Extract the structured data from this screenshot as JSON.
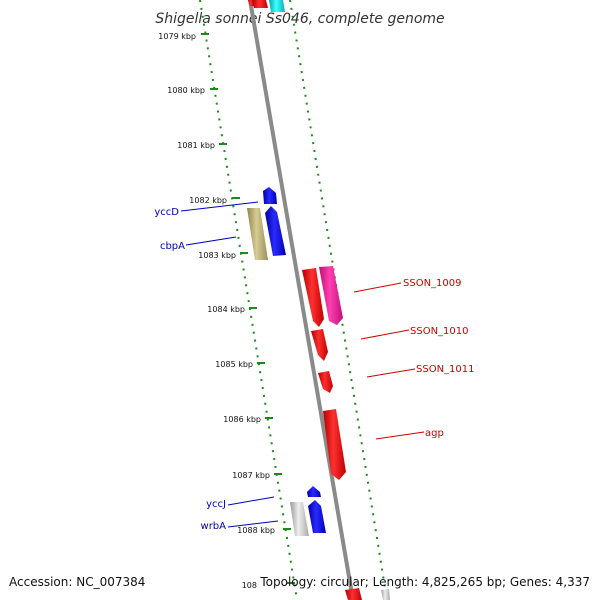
{
  "title": "Shigella sonnei Ss046, complete genome",
  "accession_label": "Accession: NC_007384",
  "summary_label": "Topology: circular; Length: 4,825,265 bp; Genes: 4,337",
  "colors": {
    "backbone": "#8a8a8a",
    "tick": "#1a8a1a",
    "forward_label": "#cc0000",
    "reverse_label": "#0000bb",
    "red": "#ff0000",
    "magenta": "#ff1fa0",
    "blue": "#0000ff",
    "olive": "#c8b878",
    "gray": "#cccccc",
    "cyan": "#00e5ee"
  },
  "ticks": [
    "1079 kbp",
    "1080 kbp",
    "1081 kbp",
    "1082 kbp",
    "1083 kbp",
    "1084 kbp",
    "1085 kbp",
    "1086 kbp",
    "1087 kbp",
    "1088 kbp",
    "108"
  ],
  "gene_labels": [
    {
      "name": "yccD",
      "strand": "reverse"
    },
    {
      "name": "cbpA",
      "strand": "reverse"
    },
    {
      "name": "SSON_1009",
      "strand": "forward"
    },
    {
      "name": "SSON_1010",
      "strand": "forward"
    },
    {
      "name": "SSON_1011",
      "strand": "forward"
    },
    {
      "name": "agp",
      "strand": "forward"
    },
    {
      "name": "yccJ",
      "strand": "reverse"
    },
    {
      "name": "wrbA",
      "strand": "reverse"
    }
  ]
}
